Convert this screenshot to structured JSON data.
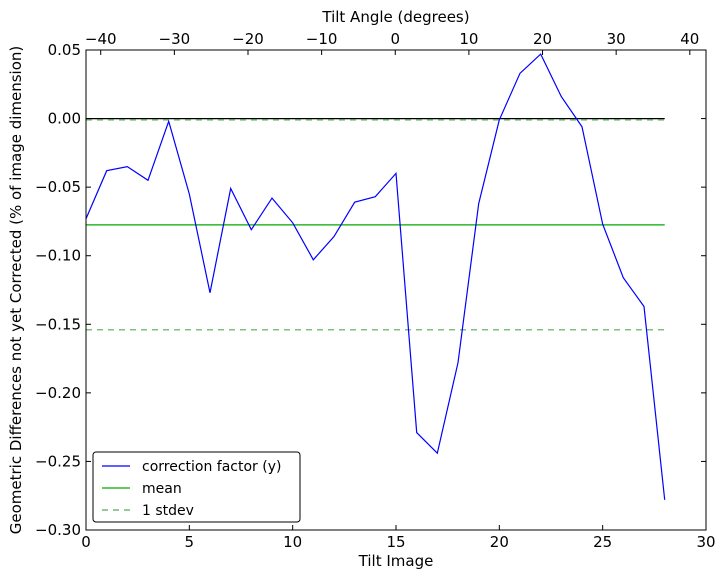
{
  "chart_data": {
    "type": "line",
    "xlabel": "Tilt Image",
    "ylabel": "Geometric Differences not yet Corrected (% of image dimension)",
    "top_xlabel": "Tilt Angle (degrees)",
    "xlim": [
      0,
      30
    ],
    "ylim": [
      -0.3,
      0.05
    ],
    "top_xlim": [
      -42,
      42.2
    ],
    "xticks": [
      0,
      5,
      10,
      15,
      20,
      25,
      30
    ],
    "xtick_labels": [
      "0",
      "5",
      "10",
      "15",
      "20",
      "25",
      "30"
    ],
    "yticks": [
      0.05,
      0.0,
      -0.05,
      -0.1,
      -0.15,
      -0.2,
      -0.25,
      -0.3
    ],
    "ytick_labels": [
      "0.05",
      "0.00",
      "−0.05",
      "−0.10",
      "−0.15",
      "−0.20",
      "−0.25",
      "−0.30"
    ],
    "top_xticks": [
      -40,
      -30,
      -20,
      -10,
      0,
      10,
      20,
      30,
      40
    ],
    "top_xtick_labels": [
      "−40",
      "−30",
      "−20",
      "−10",
      "0",
      "10",
      "20",
      "30",
      "40"
    ],
    "grid": false,
    "legend_position": "lower-left",
    "series": [
      {
        "name": "correction factor (y)",
        "color": "#0000ff",
        "style": "solid",
        "x": [
          0,
          1,
          2,
          3,
          4,
          5,
          6,
          7,
          8,
          9,
          10,
          11,
          12,
          13,
          14,
          15,
          16,
          17,
          18,
          19,
          20,
          21,
          22,
          23,
          24,
          25,
          26,
          27,
          28
        ],
        "values": [
          -0.073,
          -0.038,
          -0.035,
          -0.045,
          -0.002,
          -0.055,
          -0.127,
          -0.051,
          -0.081,
          -0.058,
          -0.076,
          -0.103,
          -0.086,
          -0.061,
          -0.057,
          -0.04,
          -0.229,
          -0.244,
          -0.178,
          -0.062,
          -0.001,
          0.033,
          0.047,
          0.016,
          -0.006,
          -0.077,
          -0.116,
          -0.137,
          -0.278
        ]
      },
      {
        "name": "mean",
        "color": "#00aa00",
        "style": "solid",
        "x": [
          0,
          28
        ],
        "values": [
          -0.0775,
          -0.0775
        ]
      },
      {
        "name": "1 stdev",
        "color": "#55aa55",
        "style": "dashed",
        "x": [
          0,
          28
        ],
        "values": [
          -0.154,
          -0.154
        ]
      },
      {
        "name": "",
        "color": "#55aa55",
        "style": "dashed",
        "x": [
          0,
          28
        ],
        "values": [
          -0.001,
          -0.001
        ]
      },
      {
        "name": "",
        "color": "#000000",
        "style": "solid",
        "x": [
          0,
          28
        ],
        "values": [
          0.0,
          0.0
        ]
      }
    ]
  }
}
